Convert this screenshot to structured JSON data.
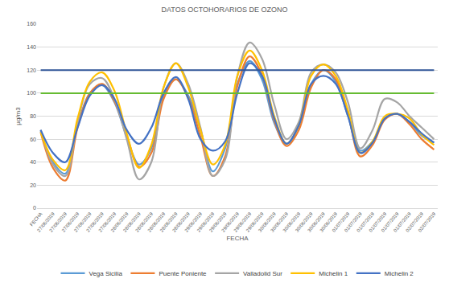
{
  "chart_data": {
    "type": "line",
    "title": "DATOS OCTOHORARIOS DE OZONO",
    "x_label": "FECHA",
    "y_label": "µg/m3",
    "categories": [
      "FECHA",
      "27/06/2019",
      "27/06/2019",
      "27/06/2019",
      "27/06/2019",
      "27/06/2019",
      "27/06/2019",
      "28/06/2019",
      "28/06/2019",
      "28/06/2019",
      "28/06/2019",
      "28/06/2019",
      "28/06/2019",
      "29/06/2019",
      "29/06/2019",
      "29/06/2019",
      "29/06/2019",
      "29/06/2019",
      "29/06/2019",
      "30/06/2019",
      "30/06/2019",
      "30/06/2019",
      "30/06/2019",
      "30/06/2019",
      "30/06/2019",
      "01/07/2019",
      "01/07/2019",
      "01/07/2019",
      "01/07/2019",
      "01/07/2019",
      "01/07/2019",
      "02/07/2019",
      "02/07/2019"
    ],
    "series": [
      {
        "name": "Vega Sicilia",
        "color": "#5b9bd5",
        "values": [
          67,
          40,
          30,
          72,
          100,
          107,
          92,
          62,
          38,
          52,
          98,
          112,
          98,
          68,
          32,
          52,
          108,
          128,
          112,
          74,
          56,
          72,
          108,
          120,
          110,
          80,
          50,
          58,
          78,
          82,
          75,
          63,
          57
        ]
      },
      {
        "name": "Puente Poniente",
        "color": "#ed7d31",
        "values": [
          66,
          35,
          24,
          70,
          100,
          108,
          93,
          63,
          36,
          48,
          95,
          112,
          96,
          62,
          28,
          45,
          106,
          132,
          116,
          76,
          54,
          68,
          105,
          120,
          112,
          82,
          45,
          55,
          77,
          82,
          73,
          60,
          51
        ]
      },
      {
        "name": "Valladolid Sur",
        "color": "#a5a5a5",
        "values": [
          68,
          38,
          28,
          75,
          108,
          113,
          95,
          60,
          25,
          40,
          105,
          126,
          108,
          70,
          28,
          42,
          115,
          144,
          130,
          90,
          60,
          75,
          118,
          125,
          118,
          92,
          52,
          68,
          95,
          92,
          80,
          70,
          60
        ]
      },
      {
        "name": "Michelin 1",
        "color": "#ffc000",
        "values": [
          66,
          42,
          33,
          78,
          110,
          118,
          102,
          65,
          35,
          55,
          105,
          126,
          105,
          68,
          38,
          55,
          115,
          137,
          120,
          80,
          56,
          72,
          115,
          125,
          115,
          85,
          48,
          58,
          80,
          82,
          78,
          64,
          55
        ]
      },
      {
        "name": "Michelin 2",
        "color": "#4472c4",
        "values": [
          68,
          48,
          40,
          70,
          98,
          107,
          95,
          68,
          56,
          70,
          100,
          114,
          95,
          60,
          50,
          58,
          100,
          126,
          115,
          78,
          56,
          72,
          108,
          115,
          108,
          80,
          48,
          57,
          78,
          82,
          75,
          65,
          57
        ]
      },
      {
        "color": "#2f5597",
        "values": [
          120,
          120,
          120,
          120,
          120,
          120,
          120,
          120,
          120,
          120,
          120,
          120,
          120,
          120,
          120,
          120,
          120,
          120,
          120,
          120,
          120,
          120,
          120,
          120,
          120,
          120,
          120,
          120,
          120,
          120,
          120,
          120,
          120
        ]
      },
      {
        "color": "#66bb33",
        "values": [
          100,
          100,
          100,
          100,
          100,
          100,
          100,
          100,
          100,
          100,
          100,
          100,
          100,
          100,
          100,
          100,
          100,
          100,
          100,
          100,
          100,
          100,
          100,
          100,
          100,
          100,
          100,
          100,
          100,
          100,
          100,
          100,
          100
        ]
      }
    ],
    "ylim": [
      0,
      160
    ],
    "yticks": [
      0,
      20,
      40,
      60,
      80,
      100,
      120,
      140,
      160
    ],
    "grid": true,
    "legend": "bottom"
  }
}
